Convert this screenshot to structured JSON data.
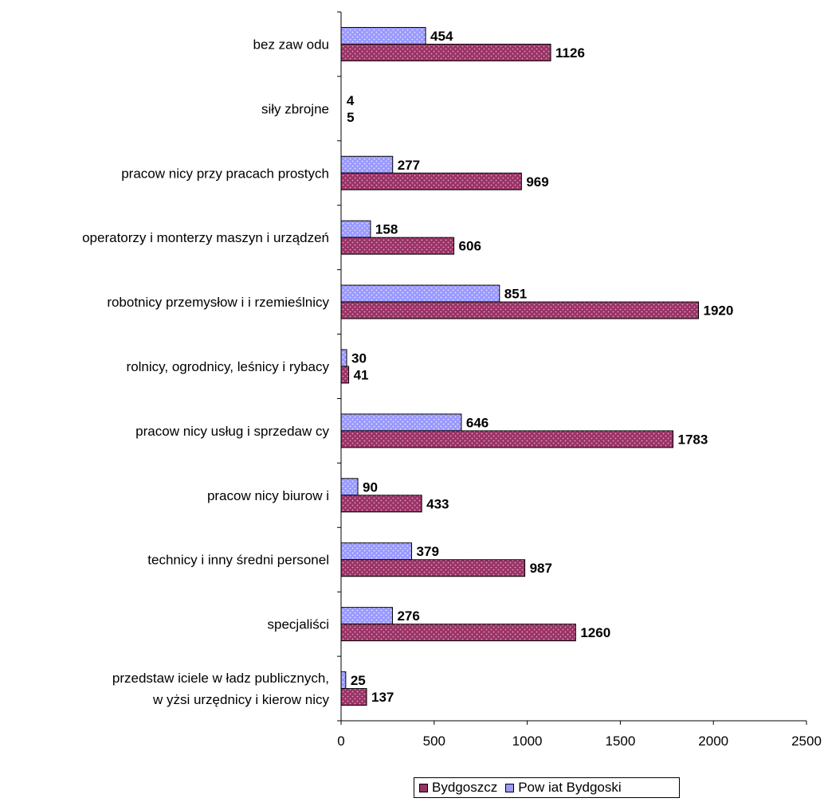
{
  "chart_data": {
    "type": "bar",
    "orientation": "horizontal",
    "categories": [
      "bez zaw odu",
      "siły zbrojne",
      "pracow nicy przy pracach prostych",
      "operatorzy i monterzy maszyn i urządzeń",
      "robotnicy przemysłow i i rzemieślnicy",
      "rolnicy, ogrodnicy, leśnicy i rybacy",
      "pracow nicy usług i sprzedaw cy",
      "pracow nicy biurow i",
      "technicy i inny średni personel",
      "specjaliści",
      "przedstaw iciele w ładz publicznych,\nw yżsi urzędnicy i kierow nicy"
    ],
    "series": [
      {
        "name": "Pow iat Bydgoski",
        "color": "#9999ff",
        "values": [
          454,
          4,
          277,
          158,
          851,
          30,
          646,
          90,
          379,
          276,
          25
        ]
      },
      {
        "name": "Bydgoszcz",
        "color": "#993366",
        "values": [
          1126,
          5,
          969,
          606,
          1920,
          41,
          1783,
          433,
          987,
          1260,
          137
        ]
      }
    ],
    "xlim": [
      0,
      2500
    ],
    "xticks": [
      0,
      500,
      1000,
      1500,
      2000,
      2500
    ],
    "grid": false,
    "legend_position": "bottom"
  },
  "legend": {
    "item_1": "Bydgoszcz",
    "item_2": "Pow iat Bydgoski",
    "color_1": "#993366",
    "color_2": "#9999ff"
  }
}
